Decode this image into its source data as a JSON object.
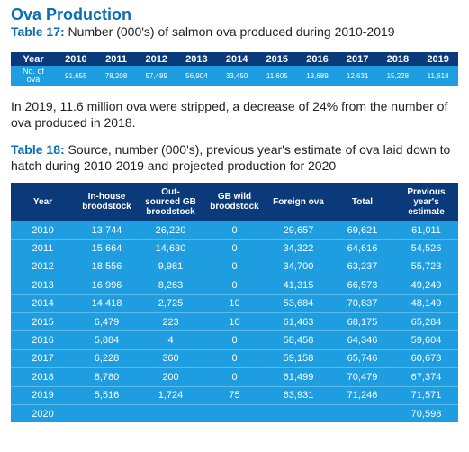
{
  "heading": "Ova Production",
  "table17": {
    "caption_label": "Table 17:",
    "caption_text": " Number (000's) of salmon ova produced during 2010-2019",
    "header_label": "Year",
    "years": [
      "2010",
      "2011",
      "2012",
      "2013",
      "2014",
      "2015",
      "2016",
      "2017",
      "2018",
      "2019"
    ],
    "row_label_line1": "No. of",
    "row_label_line2": "ova",
    "values": [
      "91,655",
      "78,208",
      "57,489",
      "56,904",
      "33,450",
      "11,605",
      "13,689",
      "12,631",
      "15,228",
      "11,618"
    ]
  },
  "paragraph": "In 2019, 11.6 million ova were stripped, a decrease of 24% from the number of ova produced in 2018.",
  "table18": {
    "caption_label": "Table 18:",
    "caption_text": " Source, number (000's), previous year's estimate of ova laid down to hatch during 2010-2019 and projected production for 2020",
    "headers": [
      {
        "l1": "Year",
        "l2": "",
        "l3": ""
      },
      {
        "l1": "In-house",
        "l2": "broodstock",
        "l3": ""
      },
      {
        "l1": "Out-",
        "l2": "sourced GB",
        "l3": "broodstock"
      },
      {
        "l1": "GB wild",
        "l2": "broodstock",
        "l3": ""
      },
      {
        "l1": "Foreign ova",
        "l2": "",
        "l3": ""
      },
      {
        "l1": "Total",
        "l2": "",
        "l3": ""
      },
      {
        "l1": "Previous",
        "l2": "year's",
        "l3": "estimate"
      }
    ],
    "rows": [
      [
        "2010",
        "13,744",
        "26,220",
        "0",
        "29,657",
        "69,621",
        "61,011"
      ],
      [
        "2011",
        "15,664",
        "14,630",
        "0",
        "34,322",
        "64,616",
        "54,526"
      ],
      [
        "2012",
        "18,556",
        "9,981",
        "0",
        "34,700",
        "63,237",
        "55,723"
      ],
      [
        "2013",
        "16,996",
        "8,263",
        "0",
        "41,315",
        "66,573",
        "49,249"
      ],
      [
        "2014",
        "14,418",
        "2,725",
        "10",
        "53,684",
        "70,837",
        "48,149"
      ],
      [
        "2015",
        "6,479",
        "223",
        "10",
        "61,463",
        "68,175",
        "65,284"
      ],
      [
        "2016",
        "5,884",
        "4",
        "0",
        "58,458",
        "64,346",
        "59,604"
      ],
      [
        "2017",
        "6,228",
        "360",
        "0",
        "59,158",
        "65,746",
        "60,673"
      ],
      [
        "2018",
        "8,780",
        "200",
        "0",
        "61,499",
        "70,479",
        "67,374"
      ],
      [
        "2019",
        "5,516",
        "1,724",
        "75",
        "63,931",
        "71,246",
        "71,571"
      ],
      [
        "2020",
        "",
        "",
        "",
        "",
        "",
        "70,598"
      ]
    ]
  }
}
